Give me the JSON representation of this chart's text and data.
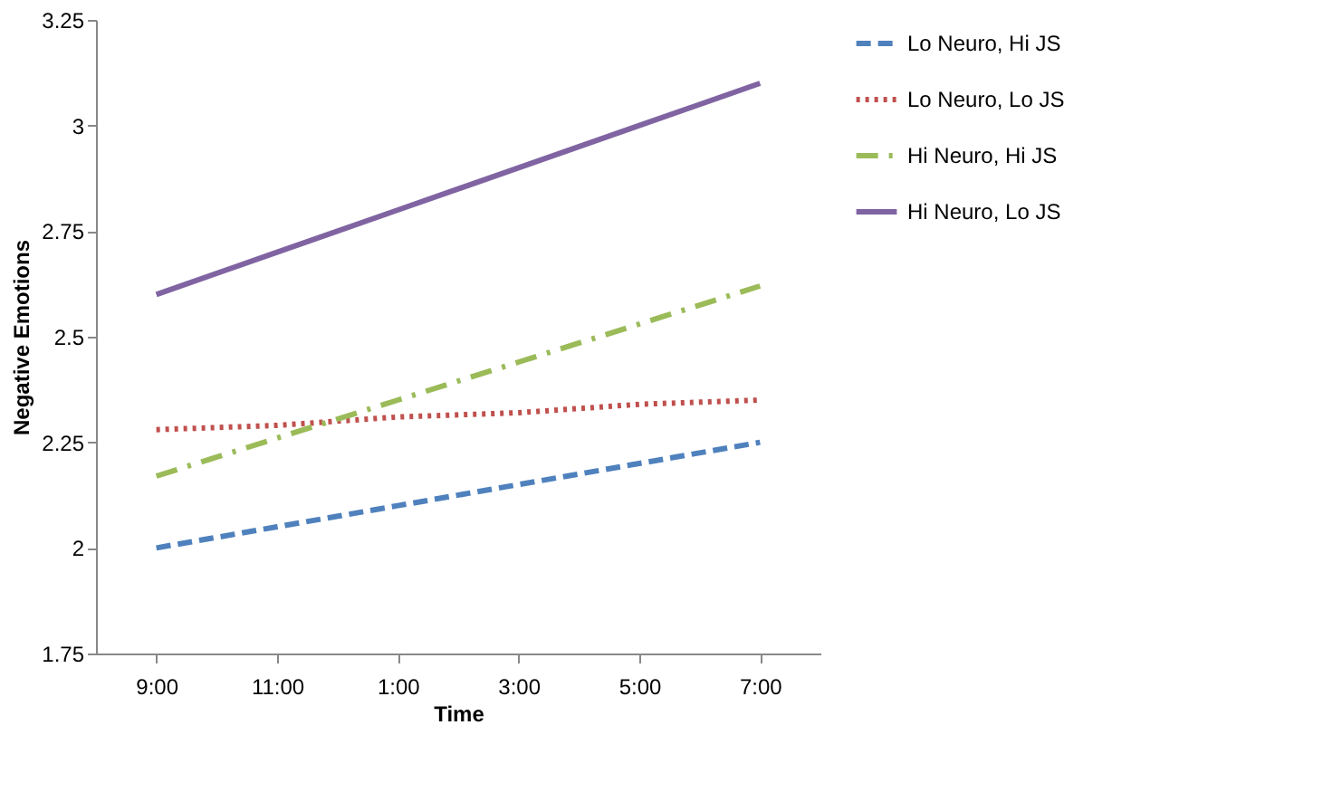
{
  "chart_data": {
    "type": "line",
    "xlabel": "Time",
    "ylabel": "Negative Emotions",
    "categories": [
      "9:00",
      "11:00",
      "1:00",
      "3:00",
      "5:00",
      "7:00"
    ],
    "ylim": [
      1.75,
      3.25
    ],
    "yticks": [
      1.75,
      2,
      2.25,
      2.5,
      2.75,
      3,
      3.25
    ],
    "grid": false,
    "legend": "top right",
    "marker": "none",
    "series": [
      {
        "name": "Lo Neuro, Hi JS",
        "color": "#4f81bd",
        "line_style": "dashed",
        "values": [
          2.0,
          2.05,
          2.1,
          2.15,
          2.2,
          2.25
        ]
      },
      {
        "name": "Lo Neuro, Lo JS",
        "color": "#c0504d",
        "line_style": "dotted",
        "values": [
          2.28,
          2.29,
          2.31,
          2.32,
          2.34,
          2.35
        ]
      },
      {
        "name": "Hi Neuro, Hi JS",
        "color": "#9bbb59",
        "line_style": "dashdot",
        "values": [
          2.17,
          2.26,
          2.35,
          2.44,
          2.53,
          2.62
        ]
      },
      {
        "name": "Hi Neuro, Lo JS",
        "color": "#8064a2",
        "line_style": "solid",
        "values": [
          2.6,
          2.7,
          2.8,
          2.9,
          3.0,
          3.1
        ]
      }
    ]
  }
}
